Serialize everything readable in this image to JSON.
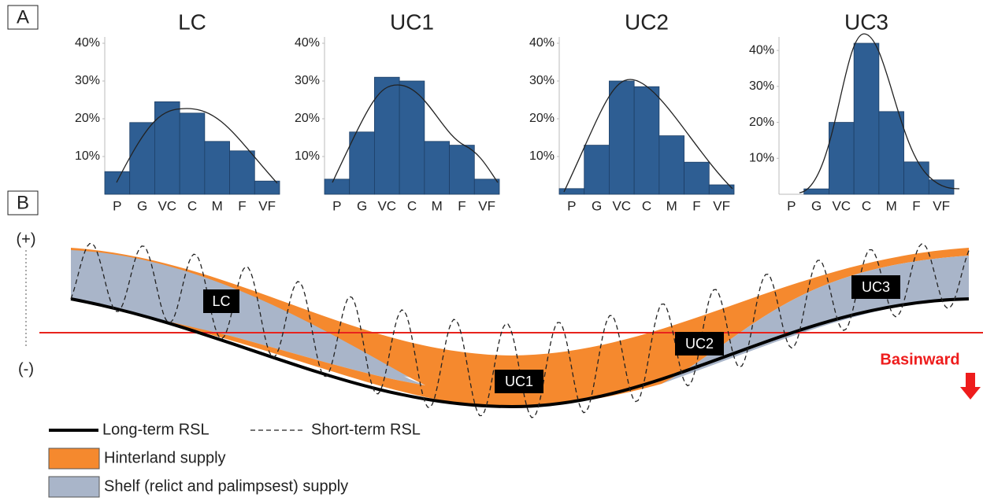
{
  "panel_labels": [
    "A",
    "B"
  ],
  "chart_data": [
    {
      "type": "bar",
      "title": "LC",
      "categories": [
        "P",
        "G",
        "VC",
        "C",
        "M",
        "F",
        "VF"
      ],
      "values": [
        6,
        19,
        24.5,
        21.5,
        14,
        11.5,
        3.5
      ],
      "color": "#2e5e93",
      "ylim": [
        0,
        40
      ],
      "yticks": [
        {
          "value": 10,
          "label": "10%"
        },
        {
          "value": 20,
          "label": "20%"
        },
        {
          "value": 30,
          "label": "30%"
        },
        {
          "value": 40,
          "label": "40%"
        }
      ]
    },
    {
      "type": "bar",
      "title": "UC1",
      "categories": [
        "P",
        "G",
        "VC",
        "C",
        "M",
        "F",
        "VF"
      ],
      "values": [
        4,
        16.5,
        31,
        30,
        14,
        13,
        4
      ],
      "color": "#2e5e93",
      "ylim": [
        0,
        40
      ],
      "yticks": [
        {
          "value": 10,
          "label": "10%"
        },
        {
          "value": 20,
          "label": "20%"
        },
        {
          "value": 30,
          "label": "30%"
        },
        {
          "value": 40,
          "label": "40%"
        }
      ]
    },
    {
      "type": "bar",
      "title": "UC2",
      "categories": [
        "P",
        "G",
        "VC",
        "C",
        "M",
        "F",
        "VF"
      ],
      "values": [
        1.5,
        13,
        30,
        28.5,
        15.5,
        8.5,
        2.5
      ],
      "color": "#2e5e93",
      "ylim": [
        0,
        40
      ],
      "yticks": [
        {
          "value": 10,
          "label": "10%"
        },
        {
          "value": 20,
          "label": "20%"
        },
        {
          "value": 30,
          "label": "30%"
        },
        {
          "value": 40,
          "label": "40%"
        }
      ]
    },
    {
      "type": "bar",
      "title": "UC3",
      "categories": [
        "P",
        "G",
        "VC",
        "C",
        "M",
        "F",
        "VF"
      ],
      "values": [
        0,
        1.5,
        20,
        42,
        23,
        9,
        4
      ],
      "color": "#2e5e93",
      "ylim": [
        0,
        42
      ],
      "yticks": [
        {
          "value": 10,
          "label": "10%"
        },
        {
          "value": 20,
          "label": "20%"
        },
        {
          "value": 30,
          "label": "30%"
        },
        {
          "value": 40,
          "label": "40%"
        }
      ]
    }
  ],
  "diagram": {
    "axis_top": "(+)",
    "axis_bottom": "(-)",
    "labels": [
      "LC",
      "UC1",
      "UC2",
      "UC3"
    ],
    "direction": "Basinward",
    "legend": [
      "Long-term RSL",
      "Short-term RSL",
      "Hinterland supply",
      "Shelf (relict and palimpsest) supply"
    ]
  }
}
